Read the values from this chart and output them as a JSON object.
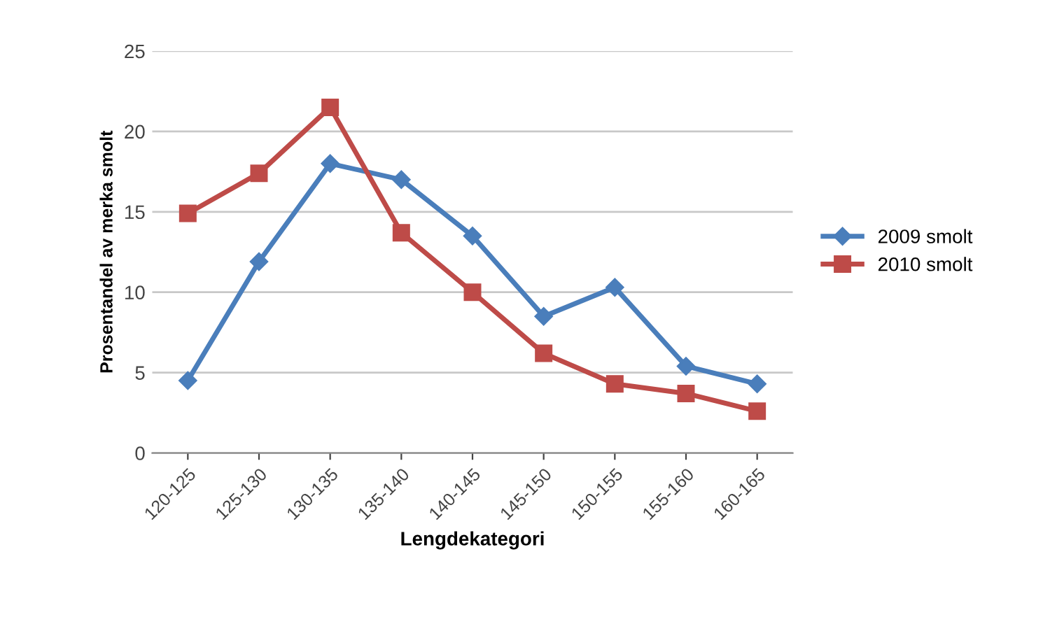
{
  "chart_data": {
    "type": "line",
    "xlabel": "Lengdekategori",
    "ylabel": "Prosentandel av merka smolt",
    "categories": [
      "120-125",
      "125-130",
      "130-135",
      "135-140",
      "140-145",
      "145-150",
      "150-155",
      "155-160",
      "160-165"
    ],
    "series": [
      {
        "name": "2009 smolt",
        "color": "#4a7ebb",
        "marker": "diamond",
        "values": [
          4.5,
          11.9,
          18.0,
          17.0,
          13.5,
          8.5,
          10.3,
          5.4,
          4.3
        ]
      },
      {
        "name": "2010 smolt",
        "color": "#be4b48",
        "marker": "square",
        "values": [
          14.9,
          17.4,
          21.5,
          13.7,
          10.0,
          6.2,
          4.3,
          3.7,
          2.6
        ]
      }
    ],
    "ylim": [
      0,
      25
    ],
    "yticks": [
      0,
      5,
      10,
      15,
      20,
      25
    ],
    "grid": "y",
    "legend": "right",
    "line_style": "solid"
  }
}
